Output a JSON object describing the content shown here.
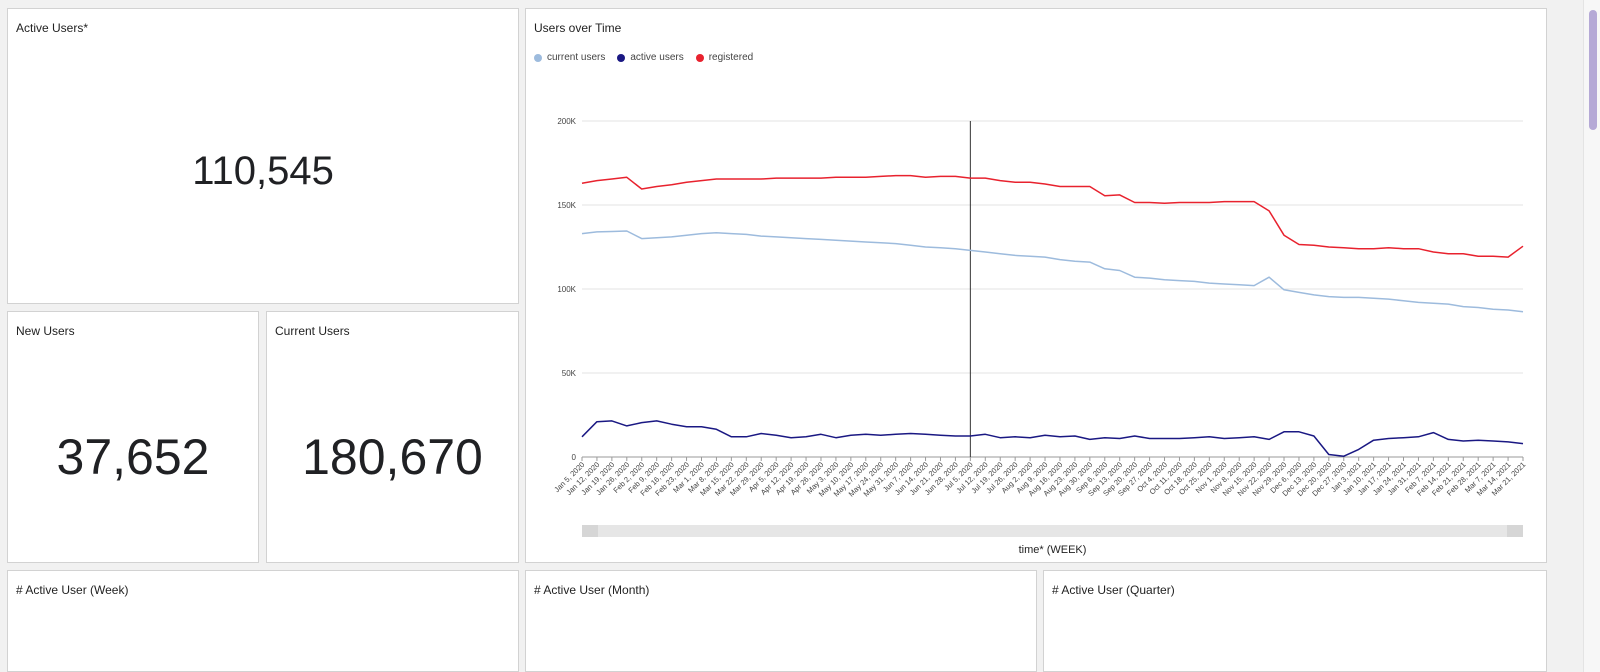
{
  "panels": {
    "active_users": {
      "title": "Active Users*",
      "value": "110,545"
    },
    "new_users": {
      "title": "New Users",
      "value": "37,652"
    },
    "current_users": {
      "title": "Current Users",
      "value": "180,670"
    },
    "users_over_time": {
      "title": "Users over Time"
    },
    "active_week": {
      "title": "# Active User (Week)"
    },
    "active_month": {
      "title": "# Active User (Month)"
    },
    "active_quarter": {
      "title": "# Active User (Quarter)"
    }
  },
  "chart_data": {
    "type": "line",
    "title": "Users over Time",
    "xlabel": "time* (WEEK)",
    "ylabel": "",
    "ylim": [
      0,
      200000
    ],
    "yticks": [
      0,
      50000,
      100000,
      150000,
      200000
    ],
    "ytick_labels": [
      "0",
      "50K",
      "100K",
      "150K",
      "200K"
    ],
    "grid": true,
    "legend": "top-left",
    "cursor_at": "Jul 5, 2020",
    "x": [
      "Jan 5, 2020",
      "Jan 12, 2020",
      "Jan 19, 2020",
      "Jan 26, 2020",
      "Feb 2, 2020",
      "Feb 9, 2020",
      "Feb 16, 2020",
      "Feb 23, 2020",
      "Mar 1, 2020",
      "Mar 8, 2020",
      "Mar 15, 2020",
      "Mar 22, 2020",
      "Mar 29, 2020",
      "Apr 5, 2020",
      "Apr 12, 2020",
      "Apr 19, 2020",
      "Apr 26, 2020",
      "May 3, 2020",
      "May 10, 2020",
      "May 17, 2020",
      "May 24, 2020",
      "May 31, 2020",
      "Jun 7, 2020",
      "Jun 14, 2020",
      "Jun 21, 2020",
      "Jun 28, 2020",
      "Jul 5, 2020",
      "Jul 12, 2020",
      "Jul 19, 2020",
      "Jul 26, 2020",
      "Aug 2, 2020",
      "Aug 9, 2020",
      "Aug 16, 2020",
      "Aug 23, 2020",
      "Aug 30, 2020",
      "Sep 6, 2020",
      "Sep 13, 2020",
      "Sep 20, 2020",
      "Sep 27, 2020",
      "Oct 4, 2020",
      "Oct 11, 2020",
      "Oct 18, 2020",
      "Oct 25, 2020",
      "Nov 1, 2020",
      "Nov 8, 2020",
      "Nov 15, 2020",
      "Nov 22, 2020",
      "Nov 29, 2020",
      "Dec 6, 2020",
      "Dec 13, 2020",
      "Dec 20, 2020",
      "Dec 27, 2020",
      "Jan 3, 2021",
      "Jan 10, 2021",
      "Jan 17, 2021",
      "Jan 24, 2021",
      "Jan 31, 2021",
      "Feb 7, 2021",
      "Feb 14, 2021",
      "Feb 21, 2021",
      "Feb 28, 2021",
      "Mar 7, 2021",
      "Mar 14, 2021",
      "Mar 21, 2021"
    ],
    "series": [
      {
        "name": "current users",
        "color": "#9dbbdd",
        "values": [
          133000,
          134000,
          134200,
          134500,
          130000,
          130500,
          131000,
          132000,
          133000,
          133500,
          133000,
          132500,
          131500,
          131000,
          130500,
          130000,
          129500,
          129000,
          128500,
          128000,
          127500,
          127000,
          126000,
          125000,
          124500,
          124000,
          123000,
          122000,
          121000,
          120000,
          119500,
          119000,
          117500,
          116500,
          116000,
          112000,
          111000,
          107000,
          106500,
          105500,
          105000,
          104500,
          103500,
          103000,
          102500,
          102000,
          107000,
          99500,
          98000,
          96500,
          95500,
          95000,
          95000,
          94500,
          94000,
          93000,
          92000,
          91500,
          91000,
          89500,
          89000,
          88000,
          87500,
          86500
        ]
      },
      {
        "name": "active users",
        "color": "#1a1883",
        "values": [
          12000,
          21000,
          21500,
          18500,
          20500,
          21500,
          19500,
          18000,
          18000,
          16500,
          12000,
          12000,
          14000,
          13000,
          11500,
          12000,
          13500,
          11500,
          13000,
          13500,
          13000,
          13500,
          14000,
          13500,
          13000,
          12500,
          12500,
          13500,
          11500,
          12000,
          11500,
          13000,
          12000,
          12500,
          10500,
          11500,
          11000,
          12500,
          11000,
          11000,
          11000,
          11500,
          12000,
          11000,
          11500,
          12000,
          10500,
          15000,
          15000,
          12500,
          1500,
          500,
          4500,
          10000,
          11000,
          11500,
          12000,
          14500,
          10500,
          9500,
          10000,
          9500,
          9000,
          8000
        ]
      },
      {
        "name": "registered",
        "color": "#e8222e",
        "values": [
          163000,
          164500,
          165500,
          166500,
          159500,
          161000,
          162000,
          163500,
          164500,
          165500,
          165500,
          165500,
          165500,
          166000,
          166000,
          166000,
          166000,
          166500,
          166500,
          166500,
          167000,
          167500,
          167500,
          166500,
          167000,
          167000,
          166000,
          166000,
          164500,
          163500,
          163500,
          162500,
          161000,
          161000,
          161000,
          155500,
          156000,
          151500,
          151500,
          151000,
          151500,
          151500,
          151500,
          152000,
          152000,
          152000,
          146500,
          132000,
          126500,
          126000,
          125000,
          124500,
          124000,
          124000,
          124500,
          124000,
          124000,
          122000,
          121000,
          121000,
          119500,
          119500,
          119000,
          125500
        ]
      }
    ]
  }
}
